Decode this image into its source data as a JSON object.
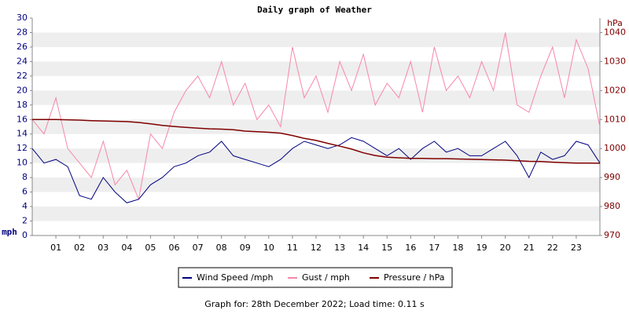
{
  "chart_data": {
    "type": "line",
    "title": "Daily graph of Weather",
    "ylabel": "mph",
    "y2label": "hPa",
    "footer": "Graph for: 28th December 2022; Load time: 0.11 s",
    "x": [
      0,
      0.5,
      1,
      1.5,
      2,
      2.5,
      3,
      3.5,
      4,
      4.5,
      5,
      5.5,
      6,
      6.5,
      7,
      7.5,
      8,
      8.5,
      9,
      9.5,
      10,
      10.5,
      11,
      11.5,
      12,
      12.5,
      13,
      13.5,
      14,
      14.5,
      15,
      15.5,
      16,
      16.5,
      17,
      17.5,
      18,
      18.5,
      19,
      19.5,
      20,
      20.5,
      21,
      21.5,
      22,
      22.5,
      23,
      23.5,
      24
    ],
    "xlim": [
      0,
      24
    ],
    "xticks": [
      {
        "value": 1,
        "label": "01"
      },
      {
        "value": 2,
        "label": "02"
      },
      {
        "value": 3,
        "label": "03"
      },
      {
        "value": 4,
        "label": "04"
      },
      {
        "value": 5,
        "label": "05"
      },
      {
        "value": 6,
        "label": "06"
      },
      {
        "value": 7,
        "label": "07"
      },
      {
        "value": 8,
        "label": "08"
      },
      {
        "value": 9,
        "label": "09"
      },
      {
        "value": 10,
        "label": "10"
      },
      {
        "value": 11,
        "label": "11"
      },
      {
        "value": 12,
        "label": "12"
      },
      {
        "value": 13,
        "label": "13"
      },
      {
        "value": 14,
        "label": "14"
      },
      {
        "value": 15,
        "label": "15"
      },
      {
        "value": 16,
        "label": "16"
      },
      {
        "value": 17,
        "label": "17"
      },
      {
        "value": 18,
        "label": "18"
      },
      {
        "value": 19,
        "label": "19"
      },
      {
        "value": 20,
        "label": "20"
      },
      {
        "value": 21,
        "label": "21"
      },
      {
        "value": 22,
        "label": "22"
      },
      {
        "value": 23,
        "label": "23"
      }
    ],
    "ylim": [
      0,
      30
    ],
    "yticks": [
      0,
      2,
      4,
      6,
      8,
      10,
      12,
      14,
      16,
      18,
      20,
      22,
      24,
      26,
      28,
      30
    ],
    "y2lim": [
      970,
      1045
    ],
    "y2ticks": [
      970,
      980,
      990,
      1000,
      1010,
      1020,
      1030,
      1040
    ],
    "grid": true,
    "series": [
      {
        "name": "Wind Speed /mph",
        "color": "#000080",
        "values": [
          12,
          10,
          10.5,
          9.5,
          5.5,
          5,
          8,
          6,
          4.5,
          5,
          7,
          8,
          9.5,
          10,
          11,
          11.5,
          13,
          11,
          10.5,
          10,
          9.5,
          10.5,
          12,
          13,
          12.5,
          12,
          12.5,
          13.5,
          13,
          12,
          11,
          12,
          10.5,
          12,
          13,
          11.5,
          12,
          11,
          11,
          12,
          13,
          11,
          8,
          11.5,
          10.5,
          11,
          13,
          12.5,
          10
        ]
      },
      {
        "name": "Gust / mph",
        "color": "#f787a8",
        "values": [
          16,
          14,
          19,
          12,
          10,
          8,
          13,
          7,
          9,
          5,
          14,
          12,
          17,
          20,
          22,
          19,
          24,
          18,
          21,
          16,
          18,
          15,
          26,
          19,
          22,
          17,
          24,
          20,
          25,
          18,
          21,
          19,
          24,
          17,
          26,
          20,
          22,
          19,
          24,
          20,
          28,
          18,
          17,
          22,
          26,
          19,
          27,
          23,
          15
        ]
      },
      {
        "name": "Pressure / hPa",
        "color": "#800000",
        "axis": "y2",
        "values": [
          1010,
          1010,
          1010,
          1009.9,
          1009.8,
          1009.6,
          1009.5,
          1009.4,
          1009.3,
          1009,
          1008.5,
          1008,
          1007.6,
          1007.3,
          1007,
          1006.8,
          1006.7,
          1006.5,
          1006,
          1005.8,
          1005.6,
          1005.3,
          1004.5,
          1003.5,
          1002.8,
          1001.8,
          1000.8,
          999.8,
          998.5,
          997.6,
          997,
          996.8,
          996.6,
          996.6,
          996.5,
          996.5,
          996.4,
          996.3,
          996.2,
          996.1,
          996,
          995.8,
          995.6,
          995.5,
          995.3,
          995.1,
          995,
          995,
          994.9
        ]
      }
    ]
  }
}
